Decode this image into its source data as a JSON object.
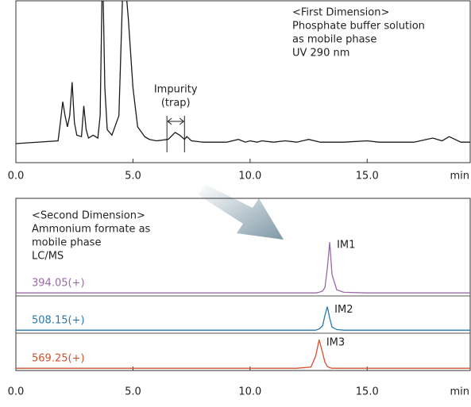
{
  "chart_data": [
    {
      "type": "line",
      "annotations": [
        "<First Dimension>",
        "Phosphate buffer solution",
        "as mobile phase",
        "UV 290 nm"
      ],
      "trap_label": [
        "Impurity",
        "(trap)"
      ],
      "trap_window": [
        6.45,
        7.2
      ],
      "x_label": "min",
      "xlim": [
        0,
        19.4
      ],
      "xticks": [
        {
          "value": 0,
          "label": "0.0"
        },
        {
          "value": 5,
          "label": "5.0"
        },
        {
          "value": 10,
          "label": "10.0"
        },
        {
          "value": 15,
          "label": "15.0"
        }
      ],
      "ylim": [
        0,
        100
      ],
      "x": [
        0,
        1.8,
        1.9,
        2.0,
        2.1,
        2.2,
        2.3,
        2.4,
        2.5,
        2.6,
        2.8,
        2.9,
        3.0,
        3.1,
        3.3,
        3.5,
        3.6,
        3.7,
        3.8,
        3.9,
        4.1,
        4.4,
        4.6,
        4.8,
        5.0,
        5.2,
        5.5,
        5.7,
        6.0,
        6.5,
        6.8,
        7.0,
        7.2,
        7.3,
        7.5,
        8.0,
        9.0,
        9.5,
        9.8,
        10.0,
        10.3,
        10.5,
        11.0,
        11.5,
        12.0,
        12.5,
        13.0,
        14.0,
        15.0,
        15.5,
        17.0,
        17.8,
        18.2,
        18.5,
        19.0,
        19.4
      ],
      "series": [
        {
          "color": "#1a1a1a",
          "values": [
            0,
            2,
            15,
            30,
            20,
            12,
            20,
            44,
            15,
            6,
            5,
            27,
            10,
            4,
            6,
            4,
            20,
            130,
            40,
            10,
            6,
            20,
            130,
            90,
            40,
            12,
            5,
            3,
            2,
            3,
            8,
            6,
            3,
            5,
            2,
            1,
            1,
            3,
            1,
            2,
            1,
            2,
            1,
            2,
            1,
            3,
            1,
            1,
            2,
            1,
            1,
            4,
            2,
            5,
            1,
            1
          ]
        }
      ]
    },
    {
      "type": "line",
      "annotations": [
        "<Second Dimension>",
        "Ammonium formate as",
        "mobile phase",
        "LC/MS"
      ],
      "x_label": "min",
      "xlim": [
        0,
        19.4
      ],
      "xticks": [
        {
          "value": 0,
          "label": "0.0"
        },
        {
          "value": 5,
          "label": "5.0"
        },
        {
          "value": 10,
          "label": "10.0"
        },
        {
          "value": 15,
          "label": "15.0"
        }
      ],
      "ylim": [
        0,
        100
      ],
      "x": [
        0,
        5,
        10,
        12.0,
        12.6,
        12.8,
        12.95,
        13.1,
        13.2,
        13.3,
        13.4,
        13.5,
        13.7,
        14.0,
        15,
        19.4
      ],
      "series": [
        {
          "name": "394.05(+)",
          "peak_label": "IM1",
          "color": "#9a6aa6",
          "values": [
            1,
            1,
            1,
            1,
            1,
            1,
            2,
            4,
            10,
            40,
            81,
            30,
            6,
            2,
            1,
            1
          ]
        },
        {
          "name": "508.15(+)",
          "peak_label": "IM2",
          "color": "#2a78b0",
          "values": [
            1,
            1,
            1,
            1,
            1,
            1,
            3,
            8,
            25,
            38,
            20,
            6,
            2,
            1,
            1,
            1
          ]
        },
        {
          "name": "569.25(+)",
          "peak_label": "IM3",
          "color": "#d4502c",
          "values": [
            1,
            1,
            1,
            1,
            3,
            20,
            46,
            25,
            10,
            4,
            2,
            1,
            1,
            1,
            1,
            1
          ]
        }
      ]
    }
  ]
}
